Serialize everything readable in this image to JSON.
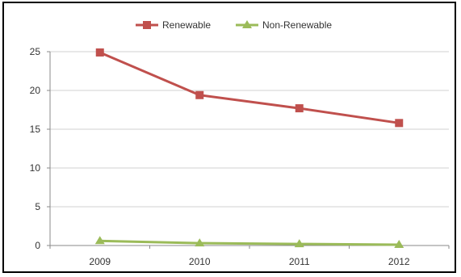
{
  "chart_data": {
    "type": "line",
    "title": "",
    "xlabel": "",
    "ylabel": "",
    "categories": [
      "2009",
      "2010",
      "2011",
      "2012"
    ],
    "ylim": [
      0,
      25
    ],
    "yticks": [
      0,
      5,
      10,
      15,
      20,
      25
    ],
    "grid": true,
    "legend_position": "top",
    "series": [
      {
        "name": "Renewable",
        "values": [
          24.9,
          19.4,
          17.7,
          15.8
        ],
        "color": "#c0504d",
        "marker": "square"
      },
      {
        "name": "Non-Renewable",
        "values": [
          0.6,
          0.3,
          0.2,
          0.1
        ],
        "color": "#9bbb59",
        "marker": "triangle"
      }
    ]
  }
}
